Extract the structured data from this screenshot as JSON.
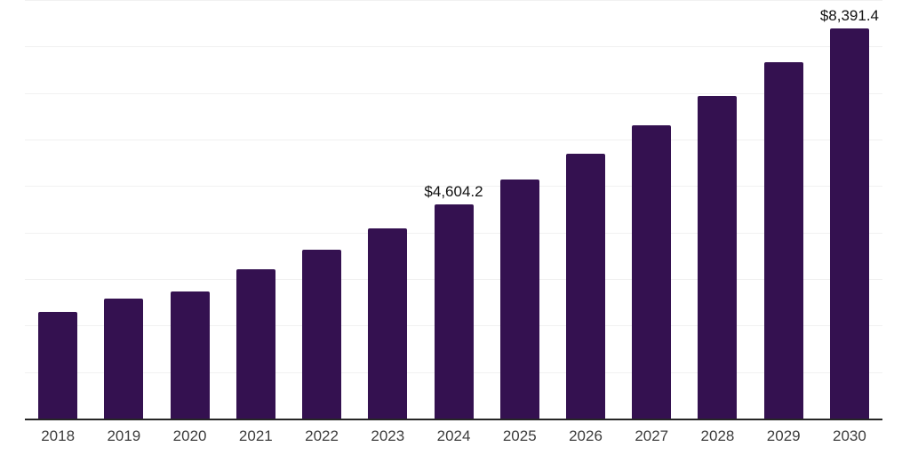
{
  "chart_data": {
    "type": "bar",
    "title": "",
    "xlabel": "",
    "ylabel": "",
    "categories": [
      "2018",
      "2019",
      "2020",
      "2021",
      "2022",
      "2023",
      "2024",
      "2025",
      "2026",
      "2027",
      "2028",
      "2029",
      "2030"
    ],
    "values": [
      2285,
      2585,
      2732,
      3210,
      3637,
      4095,
      4604.2,
      5145,
      5704,
      6310,
      6935,
      7660,
      8391.4
    ],
    "value_labels": [
      null,
      null,
      null,
      null,
      null,
      null,
      "$4,604.2",
      null,
      null,
      null,
      null,
      null,
      "$8,391.4"
    ],
    "ylim": [
      0,
      9000
    ],
    "gridline_step": 1000,
    "grid_on": true,
    "legend": "none",
    "colors": {
      "bar": "#341150",
      "axis_line": "#262626",
      "gridline": "#f1f1f1",
      "tick_label": "#3d3d3d",
      "value_label": "#111111",
      "background": "#ffffff"
    }
  }
}
